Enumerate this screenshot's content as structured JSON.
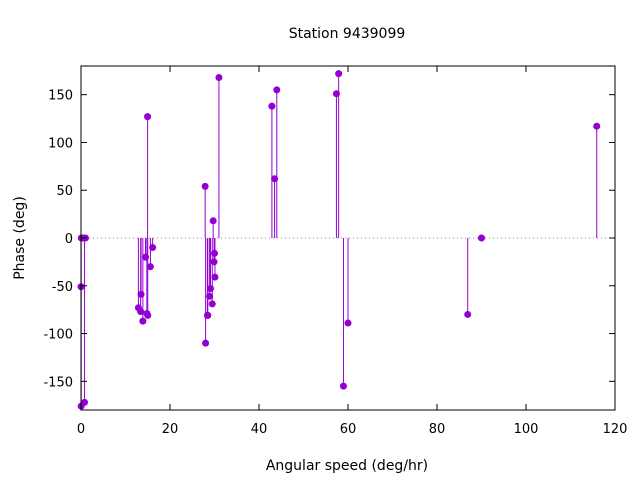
{
  "chart_data": {
    "type": "scatter",
    "style": "impulses-with-points",
    "title": "Station 9439099",
    "xlabel": "Angular speed (deg/hr)",
    "ylabel": "Phase (deg)",
    "xlim": [
      0,
      120
    ],
    "ylim": [
      -180,
      180
    ],
    "xticks": [
      0,
      20,
      40,
      60,
      80,
      100,
      120
    ],
    "yticks": [
      -150,
      -100,
      -50,
      0,
      50,
      100,
      150
    ],
    "zero_line": "dotted",
    "grid": false,
    "color": "#9400d3",
    "series": [
      {
        "points": [
          [
            0.0,
            -51
          ],
          [
            0.04,
            -176
          ],
          [
            0.08,
            0
          ],
          [
            0.5,
            0
          ],
          [
            0.8,
            -172
          ],
          [
            1.0,
            0
          ],
          [
            12.9,
            -73
          ],
          [
            13.4,
            -77
          ],
          [
            13.5,
            -59
          ],
          [
            13.9,
            -87
          ],
          [
            14.5,
            -20
          ],
          [
            14.8,
            -79
          ],
          [
            14.96,
            127
          ],
          [
            15.0,
            -81
          ],
          [
            15.6,
            -30
          ],
          [
            16.1,
            -10
          ],
          [
            27.9,
            54
          ],
          [
            28.0,
            -110
          ],
          [
            28.4,
            -81
          ],
          [
            28.5,
            -81
          ],
          [
            28.9,
            -61
          ],
          [
            29.1,
            -53
          ],
          [
            29.5,
            -69
          ],
          [
            29.7,
            18
          ],
          [
            29.9,
            -25
          ],
          [
            30.0,
            -16
          ],
          [
            30.1,
            -41
          ],
          [
            31.0,
            168
          ],
          [
            42.9,
            138
          ],
          [
            43.5,
            62
          ],
          [
            44.0,
            155
          ],
          [
            57.4,
            151
          ],
          [
            57.9,
            172
          ],
          [
            58.98,
            -155
          ],
          [
            60.0,
            -89
          ],
          [
            86.9,
            -80
          ],
          [
            90.0,
            0
          ],
          [
            115.9,
            117
          ]
        ]
      }
    ]
  }
}
